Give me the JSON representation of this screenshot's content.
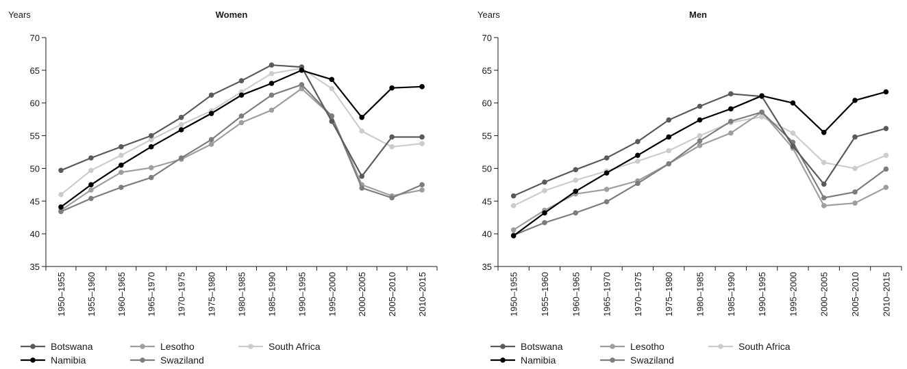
{
  "chart_data": [
    {
      "type": "line",
      "title": "Women",
      "ylabel": "Years",
      "xlabel": "",
      "ylim": [
        35,
        70
      ],
      "yticks": [
        35,
        40,
        45,
        50,
        55,
        60,
        65,
        70
      ],
      "grid": false,
      "legend_position": "bottom",
      "categories": [
        "1950–1955",
        "1955–1960",
        "1960–1965",
        "1965–1970",
        "1970–1975",
        "1975–1980",
        "1980–1985",
        "1985–1990",
        "1990–1995",
        "1995–2000",
        "2000–2005",
        "2005–2010",
        "2010–2015"
      ],
      "series": [
        {
          "name": "Botswana",
          "color": "#5a5a5a",
          "values": [
            49.7,
            51.6,
            53.3,
            55.0,
            57.8,
            61.2,
            63.4,
            65.8,
            65.5,
            57.2,
            48.8,
            54.8,
            54.8
          ]
        },
        {
          "name": "Lesotho",
          "color": "#9e9e9e",
          "values": [
            43.6,
            46.7,
            49.4,
            50.1,
            51.4,
            53.7,
            57.0,
            58.9,
            62.2,
            58.0,
            47.5,
            45.8,
            46.7
          ]
        },
        {
          "name": "South Africa",
          "color": "#cccccc",
          "values": [
            46.0,
            49.7,
            52.0,
            54.4,
            56.7,
            58.8,
            61.7,
            64.5,
            65.3,
            62.2,
            55.7,
            53.3,
            53.8
          ]
        },
        {
          "name": "Namibia",
          "color": "#000000",
          "values": [
            44.1,
            47.5,
            50.5,
            53.3,
            55.9,
            58.4,
            61.2,
            63.0,
            65.0,
            63.6,
            57.8,
            62.3,
            62.5
          ]
        },
        {
          "name": "Swaziland",
          "color": "#7d7d7d",
          "values": [
            43.4,
            45.4,
            47.1,
            48.6,
            51.6,
            54.4,
            58.0,
            61.2,
            62.8,
            58.0,
            47.0,
            45.5,
            47.5
          ]
        }
      ]
    },
    {
      "type": "line",
      "title": "Men",
      "ylabel": "Years",
      "xlabel": "",
      "ylim": [
        35,
        70
      ],
      "yticks": [
        35,
        40,
        45,
        50,
        55,
        60,
        65,
        70
      ],
      "grid": false,
      "legend_position": "bottom",
      "categories": [
        "1950–1955",
        "1955–1960",
        "1960–1965",
        "1965–1970",
        "1970–1975",
        "1975–1980",
        "1980–1985",
        "1985–1990",
        "1990–1995",
        "1995–2000",
        "2000–2005",
        "2005–2010",
        "2010–2015"
      ],
      "series": [
        {
          "name": "Botswana",
          "color": "#5a5a5a",
          "values": [
            45.8,
            47.9,
            49.8,
            51.6,
            54.1,
            57.4,
            59.5,
            61.4,
            61.0,
            53.4,
            47.6,
            54.8,
            56.1
          ]
        },
        {
          "name": "Lesotho",
          "color": "#9e9e9e",
          "values": [
            40.6,
            43.6,
            46.1,
            46.8,
            48.1,
            50.7,
            53.5,
            55.4,
            58.6,
            53.1,
            44.3,
            44.7,
            47.1
          ]
        },
        {
          "name": "South Africa",
          "color": "#cccccc",
          "values": [
            44.3,
            46.6,
            48.2,
            49.6,
            51.1,
            52.7,
            55.0,
            57.0,
            57.9,
            55.4,
            50.9,
            50.0,
            52.0
          ]
        },
        {
          "name": "Namibia",
          "color": "#000000",
          "values": [
            39.7,
            43.2,
            46.5,
            49.3,
            52.0,
            54.8,
            57.4,
            59.1,
            61.1,
            60.0,
            55.5,
            60.4,
            61.7
          ]
        },
        {
          "name": "Swaziland",
          "color": "#7d7d7d",
          "values": [
            39.8,
            41.7,
            43.2,
            44.9,
            47.7,
            50.7,
            54.2,
            57.2,
            58.6,
            54.0,
            45.5,
            46.4,
            49.9
          ]
        }
      ]
    }
  ]
}
